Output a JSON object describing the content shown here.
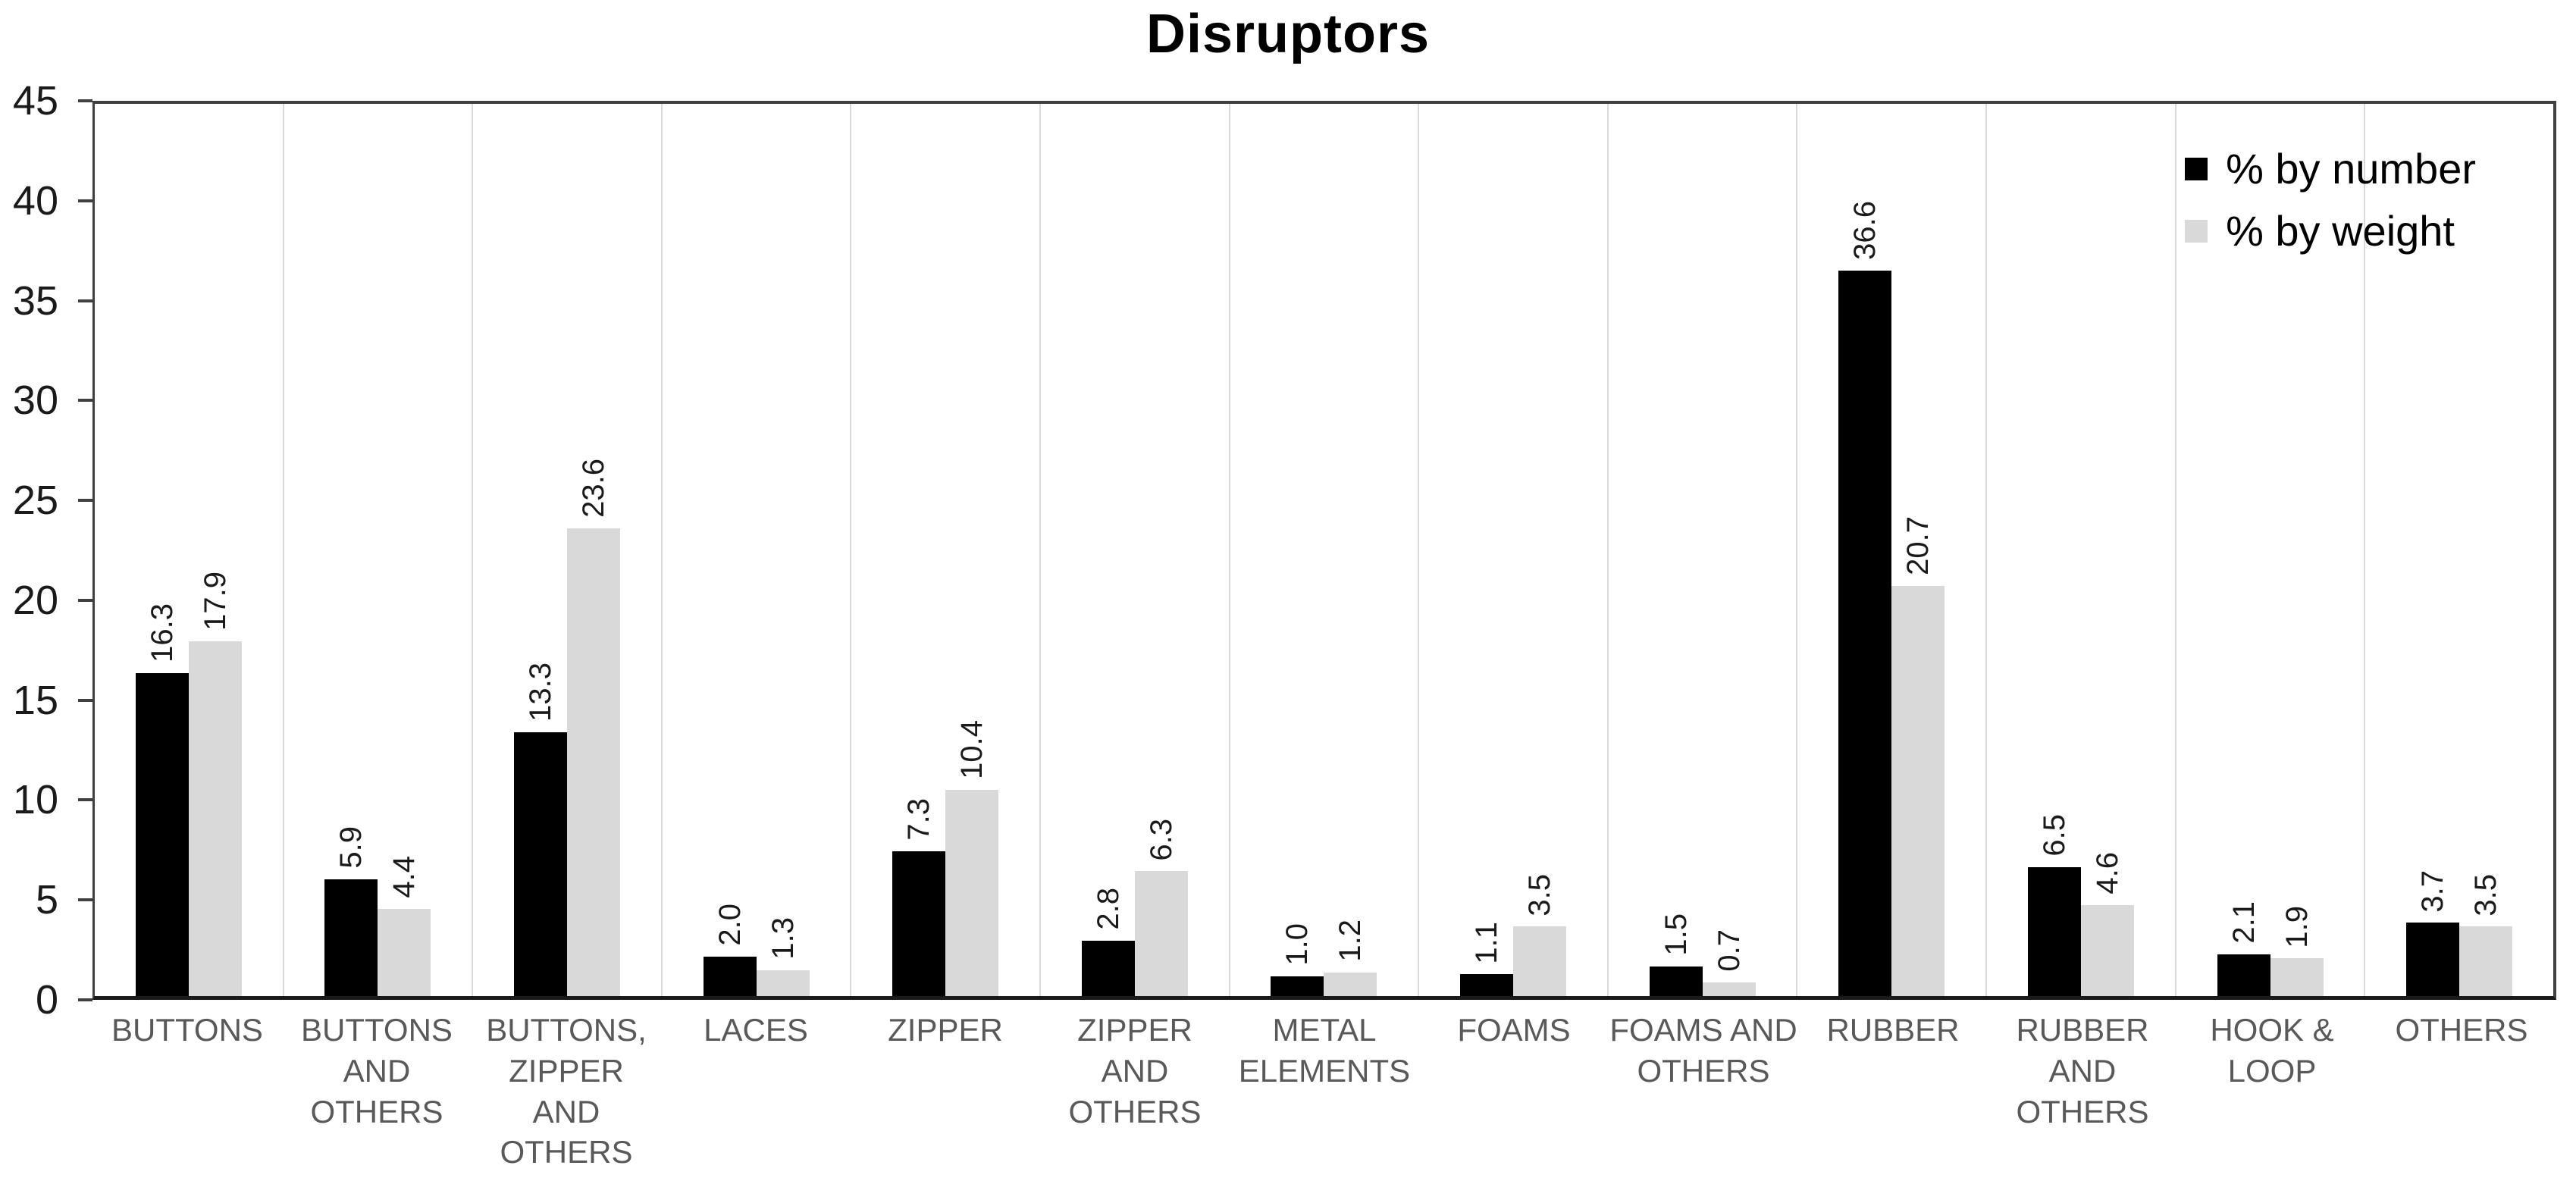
{
  "chart_data": {
    "type": "bar",
    "title": "Disruptors",
    "categories": [
      "BUTTONS",
      "BUTTONS\nAND\nOTHERS",
      "BUTTONS,\nZIPPER\nAND\nOTHERS",
      "LACES",
      "ZIPPER",
      "ZIPPER\nAND\nOTHERS",
      "METAL\nELEMENTS",
      "FOAMS",
      "FOAMS AND\nOTHERS",
      "RUBBER",
      "RUBBER\nAND\nOTHERS",
      "HOOK &\nLOOP",
      "OTHERS"
    ],
    "series": [
      {
        "name": "% by number",
        "color": "#000000",
        "values": [
          16.3,
          5.9,
          13.3,
          2.0,
          7.3,
          2.8,
          1.0,
          1.1,
          1.5,
          36.6,
          6.5,
          2.1,
          3.7
        ]
      },
      {
        "name": "% by weight",
        "color": "#d9d9d9",
        "values": [
          17.9,
          4.4,
          23.6,
          1.3,
          10.4,
          6.3,
          1.2,
          3.5,
          0.7,
          20.7,
          4.6,
          1.9,
          3.5
        ]
      }
    ],
    "xlabel": "",
    "ylabel": "",
    "ylim": [
      0,
      45
    ],
    "yticks": [
      0,
      5,
      10,
      15,
      20,
      25,
      30,
      35,
      40,
      45
    ],
    "grid": "vertical category boundaries only",
    "legend_position": "top-right inside plot",
    "value_label_format": "one decimal, rotated 90deg above bar"
  },
  "colors": {
    "bar_number": "#000000",
    "bar_weight": "#d9d9d9",
    "gridline": "#d9d9d9",
    "plot_border": "#404040",
    "axis_line": "#1a1a1a",
    "category_label": "#595959",
    "value_label": "#1a1a1a",
    "title": "#000000"
  }
}
